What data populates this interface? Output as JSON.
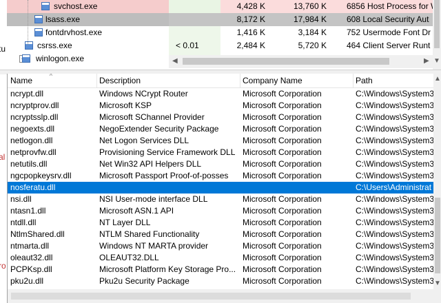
{
  "background_fragments": [
    {
      "text": "tu",
      "top": true
    },
    {
      "text": "al"
    },
    {
      "text": "ro"
    }
  ],
  "processes": [
    {
      "name": "svchost.exe",
      "private_bytes": "4,428 K",
      "working_set": "13,760 K",
      "pid_description": "6856 Host Process for W",
      "highlight": "pink"
    },
    {
      "name": "lsass.exe",
      "private_bytes": "8,172 K",
      "working_set": "17,984 K",
      "pid_description": "608 Local Security Aut",
      "highlight": "gray"
    },
    {
      "name": "fontdrvhost.exe",
      "private_bytes": "1,416 K",
      "working_set": "3,184 K",
      "pid_description": "752 Usermode Font Dr"
    },
    {
      "name": "csrss.exe",
      "cpu": "< 0.01",
      "private_bytes": "2,484 K",
      "working_set": "5,720 K",
      "pid_description": "464 Client Server Runt"
    },
    {
      "name": "winlogon.exe"
    }
  ],
  "dll_list": {
    "columns": [
      "Name",
      "Description",
      "Company Name",
      "Path"
    ],
    "rows": [
      {
        "name": "ncrypt.dll",
        "description": "Windows NCrypt Router",
        "company": "Microsoft Corporation",
        "path": "C:\\Windows\\System3"
      },
      {
        "name": "ncryptprov.dll",
        "description": "Microsoft KSP",
        "company": "Microsoft Corporation",
        "path": "C:\\Windows\\System3"
      },
      {
        "name": "ncryptsslp.dll",
        "description": "Microsoft SChannel Provider",
        "company": "Microsoft Corporation",
        "path": "C:\\Windows\\System3"
      },
      {
        "name": "negoexts.dll",
        "description": "NegoExtender Security Package",
        "company": "Microsoft Corporation",
        "path": "C:\\Windows\\System3"
      },
      {
        "name": "netlogon.dll",
        "description": "Net Logon Services DLL",
        "company": "Microsoft Corporation",
        "path": "C:\\Windows\\System3"
      },
      {
        "name": "netprovfw.dll",
        "description": "Provisioning Service Framework DLL",
        "company": "Microsoft Corporation",
        "path": "C:\\Windows\\System3"
      },
      {
        "name": "netutils.dll",
        "description": "Net Win32 API Helpers DLL",
        "company": "Microsoft Corporation",
        "path": "C:\\Windows\\System3"
      },
      {
        "name": "ngcpopkeysrv.dll",
        "description": "Microsoft Passport Proof-of-posses",
        "company": "Microsoft Corporation",
        "path": "C:\\Windows\\System3"
      },
      {
        "name": "nosferatu.dll",
        "path": "C:\\Users\\Administrat",
        "selected": true
      },
      {
        "name": "nsi.dll",
        "description": "NSI User-mode interface DLL",
        "company": "Microsoft Corporation",
        "path": "C:\\Windows\\System3"
      },
      {
        "name": "ntasn1.dll",
        "description": "Microsoft ASN.1 API",
        "company": "Microsoft Corporation",
        "path": "C:\\Windows\\System3"
      },
      {
        "name": "ntdll.dll",
        "description": "NT Layer DLL",
        "company": "Microsoft Corporation",
        "path": "C:\\Windows\\System3"
      },
      {
        "name": "NtlmShared.dll",
        "description": "NTLM Shared Functionality",
        "company": "Microsoft Corporation",
        "path": "C:\\Windows\\System3"
      },
      {
        "name": "ntmarta.dll",
        "description": "Windows NT MARTA provider",
        "company": "Microsoft Corporation",
        "path": "C:\\Windows\\System3"
      },
      {
        "name": "oleaut32.dll",
        "description": "OLEAUT32.DLL",
        "company": "Microsoft Corporation",
        "path": "C:\\Windows\\System3"
      },
      {
        "name": "PCPKsp.dll",
        "description": "Microsoft Platform Key Storage Pro...",
        "company": "Microsoft Corporation",
        "path": "C:\\Windows\\System3"
      },
      {
        "name": "pku2u.dll",
        "description": "Pku2u Security Package",
        "company": "Microsoft Corporation",
        "path": "C:\\Windows\\System3"
      }
    ]
  }
}
